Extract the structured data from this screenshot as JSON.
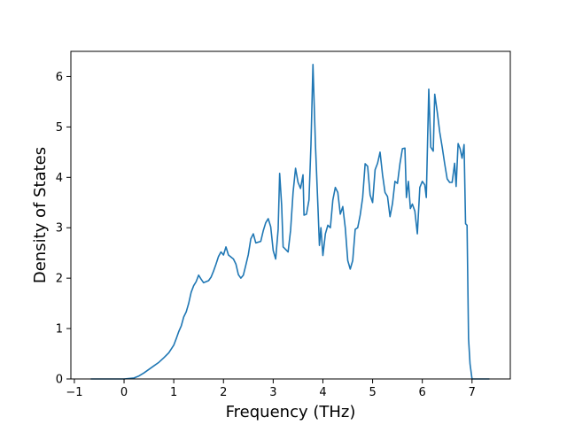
{
  "chart_data": {
    "type": "line",
    "title": "",
    "xlabel": "Frequency (THz)",
    "ylabel": "Density of States",
    "xlim": [
      -1.07,
      7.77
    ],
    "ylim": [
      0,
      6.5
    ],
    "x_ticks": [
      -1,
      0,
      1,
      2,
      3,
      4,
      5,
      6,
      7
    ],
    "y_ticks": [
      0,
      1,
      2,
      3,
      4,
      5,
      6
    ],
    "x_tick_labels": [
      "−1",
      "0",
      "1",
      "2",
      "3",
      "4",
      "5",
      "6",
      "7"
    ],
    "y_tick_labels": [
      "0",
      "1",
      "2",
      "3",
      "4",
      "5",
      "6"
    ],
    "grid": false,
    "line_color": "#1f77b4",
    "series": [
      {
        "name": "",
        "points": [
          [
            -0.67,
            0.0
          ],
          [
            0.0,
            0.0
          ],
          [
            0.2,
            0.02
          ],
          [
            0.3,
            0.06
          ],
          [
            0.4,
            0.12
          ],
          [
            0.5,
            0.19
          ],
          [
            0.6,
            0.26
          ],
          [
            0.7,
            0.33
          ],
          [
            0.8,
            0.42
          ],
          [
            0.9,
            0.52
          ],
          [
            1.0,
            0.67
          ],
          [
            1.05,
            0.8
          ],
          [
            1.1,
            0.94
          ],
          [
            1.15,
            1.05
          ],
          [
            1.2,
            1.23
          ],
          [
            1.25,
            1.33
          ],
          [
            1.3,
            1.5
          ],
          [
            1.35,
            1.72
          ],
          [
            1.4,
            1.85
          ],
          [
            1.45,
            1.93
          ],
          [
            1.5,
            2.06
          ],
          [
            1.55,
            1.98
          ],
          [
            1.6,
            1.91
          ],
          [
            1.7,
            1.95
          ],
          [
            1.75,
            2.02
          ],
          [
            1.8,
            2.14
          ],
          [
            1.85,
            2.28
          ],
          [
            1.9,
            2.43
          ],
          [
            1.95,
            2.52
          ],
          [
            2.0,
            2.46
          ],
          [
            2.05,
            2.62
          ],
          [
            2.1,
            2.46
          ],
          [
            2.2,
            2.38
          ],
          [
            2.25,
            2.28
          ],
          [
            2.3,
            2.07
          ],
          [
            2.35,
            2.0
          ],
          [
            2.4,
            2.06
          ],
          [
            2.45,
            2.26
          ],
          [
            2.5,
            2.47
          ],
          [
            2.55,
            2.78
          ],
          [
            2.6,
            2.88
          ],
          [
            2.65,
            2.7
          ],
          [
            2.75,
            2.73
          ],
          [
            2.8,
            2.94
          ],
          [
            2.85,
            3.1
          ],
          [
            2.9,
            3.18
          ],
          [
            2.95,
            3.02
          ],
          [
            3.0,
            2.55
          ],
          [
            3.05,
            2.38
          ],
          [
            3.1,
            2.97
          ],
          [
            3.13,
            4.08
          ],
          [
            3.17,
            3.45
          ],
          [
            3.2,
            2.62
          ],
          [
            3.25,
            2.57
          ],
          [
            3.3,
            2.52
          ],
          [
            3.35,
            2.95
          ],
          [
            3.4,
            3.7
          ],
          [
            3.45,
            4.18
          ],
          [
            3.5,
            3.9
          ],
          [
            3.55,
            3.78
          ],
          [
            3.6,
            4.05
          ],
          [
            3.62,
            3.25
          ],
          [
            3.67,
            3.27
          ],
          [
            3.72,
            3.55
          ],
          [
            3.76,
            4.65
          ],
          [
            3.8,
            6.24
          ],
          [
            3.85,
            4.65
          ],
          [
            3.9,
            3.42
          ],
          [
            3.93,
            2.65
          ],
          [
            3.96,
            3.0
          ],
          [
            4.0,
            2.45
          ],
          [
            4.05,
            2.88
          ],
          [
            4.1,
            3.05
          ],
          [
            4.15,
            3.0
          ],
          [
            4.2,
            3.55
          ],
          [
            4.25,
            3.8
          ],
          [
            4.3,
            3.7
          ],
          [
            4.35,
            3.27
          ],
          [
            4.4,
            3.42
          ],
          [
            4.45,
            3.0
          ],
          [
            4.5,
            2.35
          ],
          [
            4.55,
            2.18
          ],
          [
            4.6,
            2.35
          ],
          [
            4.65,
            2.97
          ],
          [
            4.7,
            3.0
          ],
          [
            4.75,
            3.25
          ],
          [
            4.8,
            3.6
          ],
          [
            4.85,
            4.27
          ],
          [
            4.9,
            4.22
          ],
          [
            4.95,
            3.65
          ],
          [
            5.0,
            3.5
          ],
          [
            5.05,
            4.15
          ],
          [
            5.1,
            4.28
          ],
          [
            5.15,
            4.5
          ],
          [
            5.2,
            4.05
          ],
          [
            5.25,
            3.7
          ],
          [
            5.3,
            3.62
          ],
          [
            5.35,
            3.22
          ],
          [
            5.4,
            3.48
          ],
          [
            5.45,
            3.92
          ],
          [
            5.5,
            3.88
          ],
          [
            5.55,
            4.27
          ],
          [
            5.6,
            4.57
          ],
          [
            5.65,
            4.58
          ],
          [
            5.68,
            3.6
          ],
          [
            5.72,
            3.92
          ],
          [
            5.76,
            3.38
          ],
          [
            5.8,
            3.47
          ],
          [
            5.85,
            3.33
          ],
          [
            5.9,
            2.88
          ],
          [
            5.95,
            3.8
          ],
          [
            6.0,
            3.92
          ],
          [
            6.05,
            3.85
          ],
          [
            6.08,
            3.6
          ],
          [
            6.13,
            5.75
          ],
          [
            6.17,
            4.6
          ],
          [
            6.22,
            4.52
          ],
          [
            6.25,
            5.65
          ],
          [
            6.3,
            5.3
          ],
          [
            6.35,
            4.9
          ],
          [
            6.4,
            4.6
          ],
          [
            6.45,
            4.27
          ],
          [
            6.5,
            3.97
          ],
          [
            6.55,
            3.9
          ],
          [
            6.6,
            3.9
          ],
          [
            6.65,
            4.28
          ],
          [
            6.68,
            3.82
          ],
          [
            6.72,
            4.67
          ],
          [
            6.76,
            4.57
          ],
          [
            6.8,
            4.38
          ],
          [
            6.84,
            4.65
          ],
          [
            6.87,
            3.08
          ],
          [
            6.9,
            3.05
          ],
          [
            6.93,
            0.8
          ],
          [
            6.96,
            0.3
          ],
          [
            7.0,
            0.0
          ],
          [
            7.35,
            0.0
          ]
        ]
      }
    ]
  }
}
